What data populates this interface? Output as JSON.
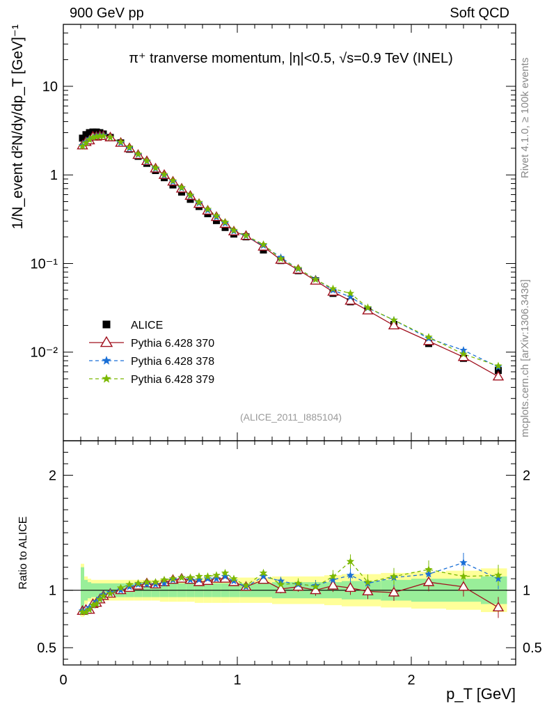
{
  "header": {
    "left": "900 GeV pp",
    "right": "Soft QCD"
  },
  "side_labels": {
    "rivet": "Rivet 4.1.0, ≥ 100k events",
    "mcplots": "mcplots.cern.ch [arXiv:1306.3436]"
  },
  "chart_data": {
    "type": "scatter",
    "title": "π⁺ tranverse momentum, |η|<0.5, √s=0.9 TeV (INEL)",
    "watermark": "(ALICE_2011_I885104)",
    "xlabel": "p_T [GeV]",
    "ylabel_main": "1/N_event d²N/dy/dp_T [GeV]⁻¹",
    "ylabel_ratio": "Ratio to ALICE",
    "xlim": [
      0,
      2.6
    ],
    "ylim_main": [
      0.001,
      50
    ],
    "ylog_main": true,
    "ylim_ratio": [
      0.35,
      2.3
    ],
    "x_ticks": [
      "0",
      "1",
      "2"
    ],
    "y_ticks_main": [
      "10⁻²",
      "10⁻¹",
      "1",
      "10"
    ],
    "y_ticks_ratio": [
      "0.5",
      "1",
      "2"
    ],
    "x": [
      0.11,
      0.13,
      0.15,
      0.17,
      0.19,
      0.21,
      0.23,
      0.27,
      0.33,
      0.38,
      0.43,
      0.48,
      0.53,
      0.58,
      0.63,
      0.68,
      0.73,
      0.78,
      0.83,
      0.88,
      0.93,
      0.98,
      1.05,
      1.15,
      1.25,
      1.35,
      1.45,
      1.55,
      1.65,
      1.75,
      1.9,
      2.1,
      2.3,
      2.5
    ],
    "series": [
      {
        "name": "ALICE",
        "color": "#000000",
        "marker": "square",
        "values": [
          2.6,
          2.85,
          3.0,
          3.05,
          3.05,
          3.0,
          2.9,
          2.65,
          2.3,
          1.95,
          1.62,
          1.35,
          1.12,
          0.93,
          0.77,
          0.64,
          0.53,
          0.44,
          0.365,
          0.305,
          0.255,
          0.215,
          0.2,
          0.142,
          0.108,
          0.083,
          0.064,
          0.046,
          0.037,
          0.0298,
          0.0205,
          0.0125,
          0.0085,
          0.0062
        ]
      },
      {
        "name": "Pythia 6.428 370",
        "color": "#a0101e",
        "marker": "open-triangle",
        "line": "solid",
        "values": [
          2.15,
          2.35,
          2.45,
          2.7,
          2.7,
          2.75,
          2.75,
          2.65,
          2.3,
          2.0,
          1.68,
          1.43,
          1.18,
          1.0,
          0.84,
          0.7,
          0.58,
          0.47,
          0.395,
          0.335,
          0.28,
          0.23,
          0.205,
          0.155,
          0.11,
          0.085,
          0.064,
          0.048,
          0.038,
          0.0295,
          0.02,
          0.0133,
          0.0088,
          0.0053
        ]
      },
      {
        "name": "Pythia 6.428 378",
        "color": "#1a6fd6",
        "marker": "star",
        "line": "dashed",
        "values": [
          2.15,
          2.35,
          2.55,
          2.65,
          2.75,
          2.8,
          2.8,
          2.65,
          2.3,
          2.0,
          1.7,
          1.42,
          1.18,
          0.99,
          0.84,
          0.71,
          0.58,
          0.48,
          0.4,
          0.335,
          0.285,
          0.232,
          0.205,
          0.16,
          0.117,
          0.087,
          0.067,
          0.05,
          0.042,
          0.0315,
          0.023,
          0.0143,
          0.0105,
          0.0068
        ]
      },
      {
        "name": "Pythia 6.428 379",
        "color": "#7ab800",
        "marker": "star",
        "line": "dashed",
        "values": [
          2.1,
          2.3,
          2.5,
          2.65,
          2.7,
          2.75,
          2.75,
          2.65,
          2.35,
          2.05,
          1.72,
          1.44,
          1.2,
          1.01,
          0.86,
          0.72,
          0.59,
          0.49,
          0.41,
          0.345,
          0.293,
          0.237,
          0.207,
          0.164,
          0.113,
          0.088,
          0.066,
          0.052,
          0.046,
          0.0318,
          0.023,
          0.0148,
          0.0095,
          0.007
        ]
      }
    ],
    "ratio_series": [
      {
        "name": "Pythia 6.428 370",
        "values": [
          0.82,
          0.83,
          0.83,
          0.88,
          0.89,
          0.92,
          0.95,
          0.97,
          1.0,
          1.02,
          1.04,
          1.06,
          1.05,
          1.07,
          1.09,
          1.1,
          1.09,
          1.07,
          1.08,
          1.1,
          1.1,
          1.07,
          1.03,
          1.09,
          1.01,
          1.03,
          1.0,
          1.04,
          1.02,
          0.99,
          0.98,
          1.07,
          1.03,
          0.85
        ]
      },
      {
        "name": "Pythia 6.428 378",
        "values": [
          0.82,
          0.82,
          0.85,
          0.87,
          0.9,
          0.93,
          0.96,
          0.98,
          1.0,
          1.03,
          1.05,
          1.05,
          1.05,
          1.06,
          1.09,
          1.11,
          1.09,
          1.09,
          1.1,
          1.1,
          1.12,
          1.08,
          1.03,
          1.12,
          1.08,
          1.05,
          1.04,
          1.09,
          1.13,
          1.06,
          1.11,
          1.14,
          1.24,
          1.1
        ]
      },
      {
        "name": "Pythia 6.428 379",
        "values": [
          0.81,
          0.81,
          0.83,
          0.87,
          0.88,
          0.92,
          0.95,
          0.97,
          1.02,
          1.05,
          1.06,
          1.07,
          1.07,
          1.09,
          1.1,
          1.11,
          1.11,
          1.12,
          1.12,
          1.13,
          1.15,
          1.1,
          1.04,
          1.15,
          1.05,
          1.06,
          1.03,
          1.12,
          1.25,
          1.07,
          1.12,
          1.18,
          1.12,
          1.13
        ]
      }
    ],
    "ratio_band_inner": [
      0.2,
      0.09,
      0.07,
      0.06,
      0.06,
      0.06,
      0.06,
      0.06,
      0.06,
      0.06,
      0.06,
      0.06,
      0.06,
      0.06,
      0.06,
      0.06,
      0.06,
      0.06,
      0.06,
      0.06,
      0.06,
      0.06,
      0.06,
      0.06,
      0.07,
      0.07,
      0.07,
      0.07,
      0.08,
      0.08,
      0.09,
      0.1,
      0.1,
      0.12
    ],
    "ratio_band_outer": [
      0.23,
      0.12,
      0.1,
      0.09,
      0.09,
      0.09,
      0.09,
      0.09,
      0.09,
      0.09,
      0.09,
      0.09,
      0.09,
      0.1,
      0.1,
      0.1,
      0.1,
      0.11,
      0.11,
      0.11,
      0.11,
      0.11,
      0.11,
      0.11,
      0.12,
      0.12,
      0.12,
      0.13,
      0.14,
      0.14,
      0.15,
      0.16,
      0.17,
      0.19
    ],
    "legend_position": "lower-left"
  }
}
